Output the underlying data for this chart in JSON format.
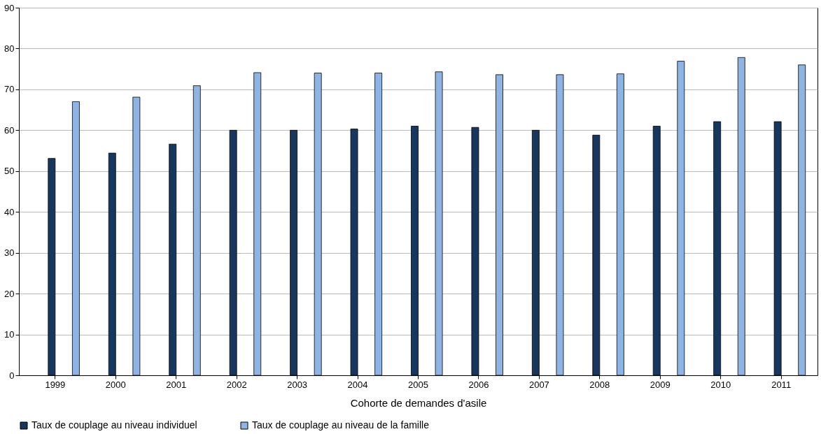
{
  "chart_data": {
    "type": "bar",
    "xlabel": "Cohorte de demandes d'asile",
    "categories": [
      "1999",
      "2000",
      "2001",
      "2002",
      "2003",
      "2004",
      "2005",
      "2006",
      "2007",
      "2008",
      "2009",
      "2010",
      "2011"
    ],
    "series": [
      {
        "name": "Taux de couplage au niveau individuel",
        "color": "#17375e",
        "values": [
          53.1,
          54.4,
          56.6,
          60,
          60,
          60.3,
          61,
          60.7,
          60,
          58.8,
          61,
          62.1,
          62.1
        ]
      },
      {
        "name": "Taux de couplage au niveau de la famille",
        "color": "#8eb4e3",
        "values": [
          67,
          68.1,
          70.9,
          74.1,
          74,
          74,
          74.3,
          73.6,
          73.6,
          73.8,
          76.9,
          77.8,
          76
        ]
      }
    ],
    "ylim": [
      0,
      90
    ],
    "yticks": [
      0,
      10,
      20,
      30,
      40,
      50,
      60,
      70,
      80,
      90
    ],
    "grid": "y",
    "legend": "bottom"
  }
}
